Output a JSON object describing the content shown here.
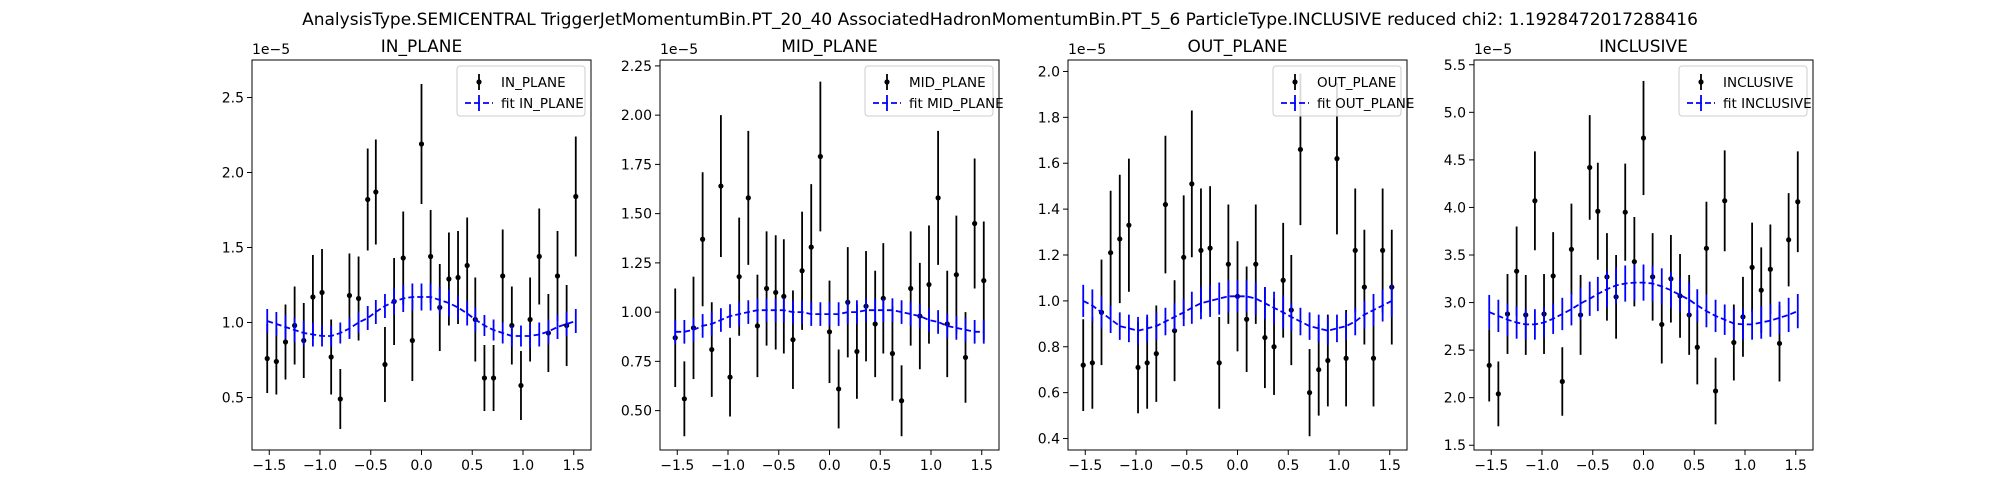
{
  "figure": {
    "suptitle": "AnalysisType.SEMICENTRAL TriggerJetMomentumBin.PT_20_40 AssociatedHadronMomentumBin.PT_5_6 ParticleType.INCLUSIVE reduced chi2: 1.1928472017288416"
  },
  "chart_data": [
    {
      "type": "scatter",
      "title": "IN_PLANE",
      "xlabel": "",
      "ylabel": "",
      "scale_label": "1e−5",
      "xlim": [
        -1.67,
        1.67
      ],
      "ylim": [
        0.15,
        2.75
      ],
      "xticks": [
        -1.5,
        -1.0,
        -0.5,
        0.0,
        0.5,
        1.0,
        1.5
      ],
      "xtick_labels": [
        "−1.5",
        "−1.0",
        "−0.5",
        "0.0",
        "0.5",
        "1.0",
        "1.5"
      ],
      "yticks": [
        0.5,
        1.0,
        1.5,
        2.0,
        2.5
      ],
      "ytick_labels": [
        "0.5",
        "1.0",
        "1.5",
        "2.0",
        "2.5"
      ],
      "legend": {
        "position": "top-right",
        "data_label": "IN_PLANE",
        "fit_label": "fit IN_PLANE"
      },
      "x": [
        -1.52,
        -1.43,
        -1.34,
        -1.25,
        -1.16,
        -1.07,
        -0.98,
        -0.89,
        -0.8,
        -0.71,
        -0.62,
        -0.53,
        -0.45,
        -0.36,
        -0.27,
        -0.18,
        -0.09,
        0.0,
        0.09,
        0.18,
        0.27,
        0.36,
        0.45,
        0.53,
        0.62,
        0.71,
        0.8,
        0.89,
        0.98,
        1.07,
        1.16,
        1.25,
        1.34,
        1.43,
        1.52
      ],
      "y": [
        0.76,
        0.74,
        0.87,
        0.98,
        0.88,
        1.17,
        1.2,
        0.77,
        0.49,
        1.18,
        1.16,
        1.82,
        1.87,
        0.72,
        1.14,
        1.43,
        0.88,
        2.19,
        1.44,
        1.1,
        1.29,
        1.3,
        1.38,
        1.02,
        0.63,
        0.63,
        1.31,
        0.98,
        0.58,
        1.02,
        1.44,
        0.93,
        1.31,
        0.98,
        1.84
      ],
      "yerr": [
        0.23,
        0.22,
        0.25,
        0.26,
        0.25,
        0.28,
        0.29,
        0.25,
        0.2,
        0.28,
        0.28,
        0.34,
        0.35,
        0.25,
        0.29,
        0.31,
        0.27,
        0.4,
        0.31,
        0.29,
        0.31,
        0.31,
        0.32,
        0.28,
        0.22,
        0.22,
        0.31,
        0.26,
        0.23,
        0.28,
        0.32,
        0.26,
        0.3,
        0.27,
        0.4
      ],
      "fit": [
        1.01,
        0.99,
        0.97,
        0.95,
        0.93,
        0.92,
        0.91,
        0.91,
        0.93,
        0.96,
        1.0,
        1.03,
        1.07,
        1.11,
        1.14,
        1.16,
        1.17,
        1.17,
        1.17,
        1.15,
        1.13,
        1.1,
        1.06,
        1.02,
        0.98,
        0.95,
        0.93,
        0.91,
        0.91,
        0.91,
        0.92,
        0.94,
        0.97,
        0.99,
        1.01
      ],
      "fit_err": [
        0.08,
        0.08,
        0.08,
        0.08,
        0.08,
        0.08,
        0.07,
        0.07,
        0.07,
        0.07,
        0.07,
        0.08,
        0.08,
        0.08,
        0.09,
        0.09,
        0.09,
        0.09,
        0.09,
        0.09,
        0.09,
        0.08,
        0.08,
        0.08,
        0.07,
        0.07,
        0.07,
        0.07,
        0.07,
        0.08,
        0.08,
        0.08,
        0.08,
        0.08,
        0.08
      ]
    },
    {
      "type": "scatter",
      "title": "MID_PLANE",
      "xlabel": "",
      "ylabel": "",
      "scale_label": "1e−5",
      "xlim": [
        -1.67,
        1.67
      ],
      "ylim": [
        0.3,
        2.28
      ],
      "xticks": [
        -1.5,
        -1.0,
        -0.5,
        0.0,
        0.5,
        1.0,
        1.5
      ],
      "xtick_labels": [
        "−1.5",
        "−1.0",
        "−0.5",
        "0.0",
        "0.5",
        "1.0",
        "1.5"
      ],
      "yticks": [
        0.5,
        0.75,
        1.0,
        1.25,
        1.5,
        1.75,
        2.0,
        2.25
      ],
      "ytick_labels": [
        "0.50",
        "0.75",
        "1.00",
        "1.25",
        "1.50",
        "1.75",
        "2.00",
        "2.25"
      ],
      "legend": {
        "position": "top-right",
        "data_label": "MID_PLANE",
        "fit_label": "fit MID_PLANE"
      },
      "x": [
        -1.52,
        -1.43,
        -1.34,
        -1.25,
        -1.16,
        -1.07,
        -0.98,
        -0.89,
        -0.8,
        -0.71,
        -0.62,
        -0.53,
        -0.45,
        -0.36,
        -0.27,
        -0.18,
        -0.09,
        0.0,
        0.09,
        0.18,
        0.27,
        0.36,
        0.45,
        0.53,
        0.62,
        0.71,
        0.8,
        0.89,
        0.98,
        1.07,
        1.16,
        1.25,
        1.34,
        1.43,
        1.52
      ],
      "y": [
        0.87,
        0.56,
        0.92,
        1.37,
        0.81,
        1.64,
        0.67,
        1.18,
        1.58,
        0.93,
        1.12,
        1.1,
        1.08,
        0.86,
        1.21,
        1.33,
        1.79,
        0.9,
        0.61,
        1.05,
        0.8,
        1.03,
        0.94,
        1.07,
        0.79,
        0.55,
        1.12,
        0.98,
        1.14,
        1.58,
        0.94,
        1.19,
        0.77,
        1.45,
        1.16
      ],
      "yerr": [
        0.25,
        0.19,
        0.26,
        0.34,
        0.24,
        0.36,
        0.2,
        0.3,
        0.34,
        0.26,
        0.29,
        0.29,
        0.29,
        0.25,
        0.3,
        0.32,
        0.38,
        0.26,
        0.2,
        0.28,
        0.24,
        0.28,
        0.27,
        0.28,
        0.24,
        0.18,
        0.29,
        0.27,
        0.3,
        0.34,
        0.27,
        0.3,
        0.23,
        0.33,
        0.3
      ],
      "fit": [
        0.9,
        0.9,
        0.91,
        0.93,
        0.94,
        0.96,
        0.98,
        0.99,
        1.0,
        1.01,
        1.01,
        1.01,
        1.01,
        1.0,
        1.0,
        0.99,
        0.99,
        0.99,
        0.99,
        1.0,
        1.0,
        1.01,
        1.01,
        1.01,
        1.01,
        1.0,
        0.99,
        0.98,
        0.96,
        0.95,
        0.93,
        0.92,
        0.91,
        0.9,
        0.9
      ],
      "fit_err": [
        0.06,
        0.06,
        0.06,
        0.06,
        0.06,
        0.06,
        0.06,
        0.06,
        0.06,
        0.06,
        0.06,
        0.06,
        0.06,
        0.06,
        0.06,
        0.06,
        0.06,
        0.06,
        0.06,
        0.06,
        0.06,
        0.06,
        0.06,
        0.06,
        0.06,
        0.06,
        0.06,
        0.06,
        0.06,
        0.06,
        0.06,
        0.06,
        0.06,
        0.06,
        0.06
      ]
    },
    {
      "type": "scatter",
      "title": "OUT_PLANE",
      "xlabel": "",
      "ylabel": "",
      "scale_label": "1e−5",
      "xlim": [
        -1.67,
        1.67
      ],
      "ylim": [
        0.35,
        2.05
      ],
      "xticks": [
        -1.5,
        -1.0,
        -0.5,
        0.0,
        0.5,
        1.0,
        1.5
      ],
      "xtick_labels": [
        "−1.5",
        "−1.0",
        "−0.5",
        "0.0",
        "0.5",
        "1.0",
        "1.5"
      ],
      "yticks": [
        0.4,
        0.6,
        0.8,
        1.0,
        1.2,
        1.4,
        1.6,
        1.8,
        2.0
      ],
      "ytick_labels": [
        "0.4",
        "0.6",
        "0.8",
        "1.0",
        "1.2",
        "1.4",
        "1.6",
        "1.8",
        "2.0"
      ],
      "legend": {
        "position": "top-right",
        "data_label": "OUT_PLANE",
        "fit_label": "fit OUT_PLANE"
      },
      "x": [
        -1.52,
        -1.43,
        -1.34,
        -1.25,
        -1.16,
        -1.07,
        -0.98,
        -0.89,
        -0.8,
        -0.71,
        -0.62,
        -0.53,
        -0.45,
        -0.36,
        -0.27,
        -0.18,
        -0.09,
        0.0,
        0.09,
        0.18,
        0.27,
        0.36,
        0.45,
        0.53,
        0.62,
        0.71,
        0.8,
        0.89,
        0.98,
        1.07,
        1.16,
        1.25,
        1.34,
        1.43,
        1.52
      ],
      "y": [
        0.72,
        0.73,
        0.95,
        1.21,
        1.27,
        1.33,
        0.71,
        0.73,
        0.77,
        1.42,
        0.87,
        1.19,
        1.51,
        1.22,
        1.23,
        0.73,
        1.16,
        1.02,
        0.92,
        1.16,
        0.84,
        0.8,
        1.09,
        0.96,
        1.66,
        0.6,
        0.7,
        0.74,
        1.62,
        0.75,
        1.22,
        1.06,
        0.75,
        1.22,
        1.06
      ],
      "yerr": [
        0.2,
        0.2,
        0.23,
        0.27,
        0.28,
        0.29,
        0.2,
        0.2,
        0.21,
        0.3,
        0.22,
        0.27,
        0.32,
        0.27,
        0.27,
        0.2,
        0.26,
        0.24,
        0.23,
        0.26,
        0.22,
        0.21,
        0.25,
        0.24,
        0.33,
        0.19,
        0.2,
        0.2,
        0.33,
        0.21,
        0.27,
        0.25,
        0.21,
        0.27,
        0.25
      ],
      "fit": [
        1.0,
        0.98,
        0.95,
        0.92,
        0.89,
        0.88,
        0.87,
        0.88,
        0.89,
        0.91,
        0.93,
        0.95,
        0.97,
        0.99,
        1.0,
        1.01,
        1.02,
        1.02,
        1.02,
        1.01,
        0.99,
        0.97,
        0.95,
        0.93,
        0.91,
        0.89,
        0.88,
        0.87,
        0.88,
        0.89,
        0.91,
        0.94,
        0.96,
        0.98,
        1.0
      ],
      "fit_err": [
        0.07,
        0.07,
        0.07,
        0.06,
        0.06,
        0.06,
        0.06,
        0.06,
        0.06,
        0.06,
        0.06,
        0.06,
        0.07,
        0.07,
        0.07,
        0.07,
        0.07,
        0.07,
        0.07,
        0.07,
        0.07,
        0.07,
        0.07,
        0.06,
        0.06,
        0.06,
        0.06,
        0.06,
        0.06,
        0.06,
        0.06,
        0.06,
        0.07,
        0.07,
        0.07
      ]
    },
    {
      "type": "scatter",
      "title": "INCLUSIVE",
      "xlabel": "",
      "ylabel": "",
      "scale_label": "1e−5",
      "xlim": [
        -1.67,
        1.67
      ],
      "ylim": [
        1.45,
        5.55
      ],
      "xticks": [
        -1.5,
        -1.0,
        -0.5,
        0.0,
        0.5,
        1.0,
        1.5
      ],
      "xtick_labels": [
        "−1.5",
        "−1.0",
        "−0.5",
        "0.0",
        "0.5",
        "1.0",
        "1.5"
      ],
      "yticks": [
        1.5,
        2.0,
        2.5,
        3.0,
        3.5,
        4.0,
        4.5,
        5.0,
        5.5
      ],
      "ytick_labels": [
        "1.5",
        "2.0",
        "2.5",
        "3.0",
        "3.5",
        "4.0",
        "4.5",
        "5.0",
        "5.5"
      ],
      "legend": {
        "position": "top-right",
        "data_label": "INCLUSIVE",
        "fit_label": "fit INCLUSIVE"
      },
      "x": [
        -1.52,
        -1.43,
        -1.34,
        -1.25,
        -1.16,
        -1.07,
        -0.98,
        -0.89,
        -0.8,
        -0.71,
        -0.62,
        -0.53,
        -0.45,
        -0.36,
        -0.27,
        -0.18,
        -0.09,
        0.0,
        0.09,
        0.18,
        0.27,
        0.36,
        0.45,
        0.53,
        0.62,
        0.71,
        0.8,
        0.89,
        0.98,
        1.07,
        1.16,
        1.25,
        1.34,
        1.43,
        1.52
      ],
      "y": [
        2.34,
        2.04,
        2.88,
        3.33,
        2.87,
        4.07,
        2.88,
        3.28,
        2.17,
        3.56,
        2.87,
        4.42,
        3.96,
        3.27,
        3.06,
        3.95,
        3.43,
        4.73,
        3.27,
        2.77,
        3.25,
        3.07,
        2.87,
        2.53,
        3.57,
        2.07,
        4.07,
        2.58,
        2.85,
        3.37,
        3.13,
        3.35,
        2.57,
        3.66,
        4.06
      ],
      "yerr": [
        0.38,
        0.34,
        0.42,
        0.47,
        0.42,
        0.52,
        0.42,
        0.46,
        0.36,
        0.48,
        0.42,
        0.55,
        0.51,
        0.46,
        0.44,
        0.51,
        0.47,
        0.6,
        0.46,
        0.41,
        0.46,
        0.44,
        0.42,
        0.39,
        0.49,
        0.35,
        0.53,
        0.4,
        0.42,
        0.47,
        0.45,
        0.47,
        0.4,
        0.49,
        0.53
      ],
      "fit": [
        2.9,
        2.86,
        2.82,
        2.79,
        2.77,
        2.77,
        2.79,
        2.83,
        2.88,
        2.93,
        2.99,
        3.04,
        3.09,
        3.14,
        3.18,
        3.2,
        3.21,
        3.21,
        3.2,
        3.17,
        3.13,
        3.08,
        3.03,
        2.97,
        2.91,
        2.86,
        2.82,
        2.78,
        2.77,
        2.77,
        2.79,
        2.81,
        2.84,
        2.87,
        2.91
      ],
      "fit_err": [
        0.18,
        0.17,
        0.17,
        0.17,
        0.16,
        0.16,
        0.16,
        0.16,
        0.17,
        0.17,
        0.17,
        0.18,
        0.18,
        0.19,
        0.19,
        0.19,
        0.19,
        0.19,
        0.19,
        0.19,
        0.19,
        0.18,
        0.18,
        0.17,
        0.17,
        0.17,
        0.16,
        0.16,
        0.16,
        0.16,
        0.17,
        0.17,
        0.17,
        0.18,
        0.18
      ]
    }
  ]
}
